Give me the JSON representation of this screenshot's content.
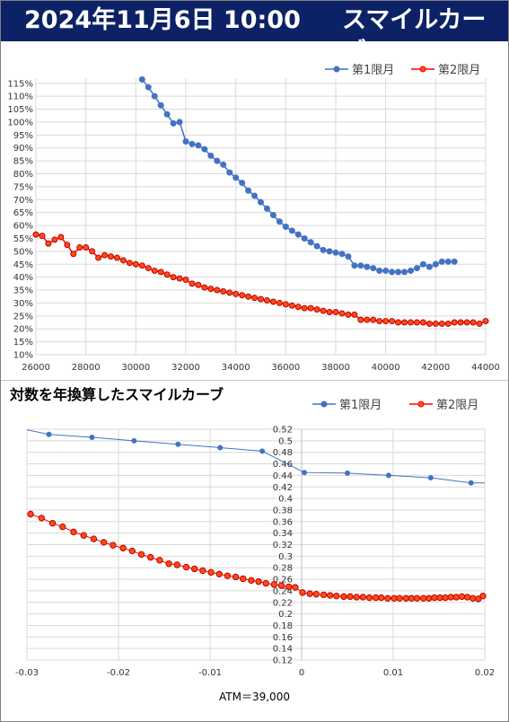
{
  "header": {
    "date": "2024年11月6日 10:00",
    "subject": "スマイルカーブ"
  },
  "colors": {
    "banner": "#0d2266",
    "series1": "#4472c4",
    "series2": "#ff0000",
    "series2_marker": "#ff4a17"
  },
  "chart2_title": "対数を年換算したスマイルカーブ",
  "footer": {
    "atm": "ATM＝39,000"
  },
  "chart_data": [
    {
      "type": "line",
      "title": "",
      "xlabel": "",
      "ylabel": "",
      "xlim": [
        26000,
        44000
      ],
      "ylim": [
        10,
        117
      ],
      "x_ticks": [
        26000,
        28000,
        30000,
        32000,
        34000,
        36000,
        38000,
        40000,
        42000,
        44000
      ],
      "y_ticks": [
        10,
        15,
        20,
        25,
        30,
        35,
        40,
        45,
        50,
        55,
        60,
        65,
        70,
        75,
        80,
        85,
        90,
        95,
        100,
        105,
        110,
        115
      ],
      "x_tick_labels": [
        "26000",
        "28000",
        "30000",
        "32000",
        "34000",
        "36000",
        "38000",
        "40000",
        "42000",
        "44000"
      ],
      "y_tick_labels": [
        "10%",
        "15%",
        "20%",
        "25%",
        "30%",
        "35%",
        "40%",
        "45%",
        "50%",
        "55%",
        "60%",
        "65%",
        "70%",
        "75%",
        "80%",
        "85%",
        "90%",
        "95%",
        "100%",
        "105%",
        "110%",
        "115%"
      ],
      "y_unit": "%",
      "grid": true,
      "legend": "top-right",
      "series": [
        {
          "name": "第1限月",
          "x": [
            30250,
            30500,
            30750,
            31000,
            31250,
            31500,
            31750,
            32000,
            32250,
            32500,
            32750,
            33000,
            33250,
            33500,
            33750,
            34000,
            34250,
            34500,
            34750,
            35000,
            35250,
            35500,
            35750,
            36000,
            36250,
            36500,
            36750,
            37000,
            37250,
            37500,
            37750,
            38000,
            38250,
            38500,
            38750,
            39000,
            39250,
            39500,
            39750,
            40000,
            40250,
            40500,
            40750,
            41000,
            41250,
            41500,
            41750,
            42000,
            42250,
            42500,
            42750
          ],
          "y": [
            116.5,
            113.5,
            110,
            106.5,
            103,
            99.5,
            100,
            92.5,
            91.5,
            91,
            89.5,
            87,
            85,
            83.5,
            80.5,
            78.5,
            76.5,
            73.5,
            71.5,
            69,
            66.5,
            64,
            61.5,
            59.5,
            58,
            56.5,
            55,
            53.5,
            52,
            50.5,
            50,
            49.5,
            49,
            48,
            44.5,
            44.5,
            44,
            43.5,
            42.5,
            42.5,
            42,
            42,
            42,
            42.5,
            43.5,
            45,
            44,
            45,
            46,
            46,
            46
          ]
        },
        {
          "name": "第2限月",
          "x": [
            26000,
            26250,
            26500,
            26750,
            27000,
            27250,
            27500,
            27750,
            28000,
            28250,
            28500,
            28750,
            29000,
            29250,
            29500,
            29750,
            30000,
            30250,
            30500,
            30750,
            31000,
            31250,
            31500,
            31750,
            32000,
            32250,
            32500,
            32750,
            33000,
            33250,
            33500,
            33750,
            34000,
            34250,
            34500,
            34750,
            35000,
            35250,
            35500,
            35750,
            36000,
            36250,
            36500,
            36750,
            37000,
            37250,
            37500,
            37750,
            38000,
            38250,
            38500,
            38750,
            39000,
            39250,
            39500,
            39750,
            40000,
            40250,
            40500,
            40750,
            41000,
            41250,
            41500,
            41750,
            42000,
            42250,
            42500,
            42750,
            43000,
            43250,
            43500,
            43750,
            44000
          ],
          "y": [
            56.5,
            56,
            53,
            54.5,
            55.5,
            52.5,
            49,
            51.5,
            51.5,
            50,
            47.5,
            48.5,
            48,
            47.5,
            46.5,
            45.5,
            45,
            44.5,
            43.5,
            42.5,
            42,
            41,
            40,
            39.5,
            39,
            37.5,
            37,
            36,
            35.5,
            35,
            34.5,
            34,
            33.5,
            33,
            32.5,
            32,
            31.5,
            31,
            30.5,
            30,
            29.5,
            29,
            28.5,
            28,
            28,
            27.5,
            27,
            26.5,
            26.5,
            26,
            25.5,
            25.5,
            23.5,
            23.5,
            23.5,
            23,
            23,
            23,
            22.5,
            22.5,
            22.5,
            22.5,
            22.5,
            22,
            22,
            22,
            22,
            22.5,
            22.5,
            22.5,
            22.5,
            22,
            23
          ]
        }
      ]
    },
    {
      "type": "line",
      "title": "",
      "xlabel": "",
      "ylabel": "",
      "xlim": [
        -0.03,
        0.02
      ],
      "ylim": [
        0.12,
        0.52
      ],
      "x_ticks": [
        -0.03,
        -0.02,
        -0.01,
        0,
        0.01,
        0.02
      ],
      "y_ticks": [
        0.12,
        0.14,
        0.16,
        0.18,
        0.2,
        0.22,
        0.24,
        0.26,
        0.28,
        0.3,
        0.32,
        0.34,
        0.36,
        0.38,
        0.4,
        0.42,
        0.44,
        0.46,
        0.48,
        0.5,
        0.52
      ],
      "x_tick_labels": [
        "-0.03",
        "-0.02",
        "-0.01",
        "0",
        "0.01",
        "0.02"
      ],
      "y_tick_labels": [
        "0.12",
        "0.14",
        "0.16",
        "0.18",
        "0.2",
        "0.22",
        "0.24",
        "0.26",
        "0.28",
        "0.3",
        "0.32",
        "0.34",
        "0.36",
        "0.38",
        "0.4",
        "0.42",
        "0.44",
        "0.46",
        "0.48",
        "0.5",
        "0.52"
      ],
      "grid": true,
      "legend": "top-right",
      "series": [
        {
          "name": "第1限月",
          "marker_every": true,
          "x": [
            -0.03,
            -0.0276,
            -0.0229,
            -0.0183,
            -0.0135,
            -0.0089,
            -0.0043,
            0.0003,
            0.005,
            0.0095,
            0.0141,
            0.0185,
            0.02
          ],
          "y": [
            0.519,
            0.511,
            0.506,
            0.5,
            0.494,
            0.488,
            0.482,
            0.445,
            0.444,
            0.44,
            0.436,
            0.427,
            0.427
          ],
          "markers_at": [
            1,
            2,
            3,
            4,
            5,
            6,
            7,
            8,
            9,
            10,
            11
          ]
        },
        {
          "name": "第2限月",
          "x": [
            -0.0296,
            -0.0284,
            -0.0272,
            -0.0261,
            -0.0249,
            -0.0238,
            -0.0227,
            -0.0216,
            -0.0206,
            -0.0195,
            -0.0185,
            -0.0175,
            -0.0165,
            -0.0155,
            -0.0145,
            -0.0136,
            -0.0126,
            -0.0117,
            -0.0108,
            -0.0099,
            -0.009,
            -0.0081,
            -0.0072,
            -0.0064,
            -0.0055,
            -0.0047,
            -0.0039,
            -0.003,
            -0.0022,
            -0.0014,
            -0.0007,
            0.0001,
            0.0009,
            0.0016,
            0.0024,
            0.0031,
            0.0038,
            0.0046,
            0.0053,
            0.006,
            0.0067,
            0.0074,
            0.0081,
            0.0087,
            0.0094,
            0.0101,
            0.0107,
            0.0114,
            0.012,
            0.0126,
            0.0133,
            0.0139,
            0.0145,
            0.0151,
            0.0157,
            0.0163,
            0.0169,
            0.0175,
            0.0181,
            0.0187,
            0.0193,
            0.0198
          ],
          "y": [
            0.373,
            0.366,
            0.357,
            0.351,
            0.342,
            0.336,
            0.33,
            0.324,
            0.319,
            0.314,
            0.309,
            0.303,
            0.298,
            0.293,
            0.287,
            0.285,
            0.281,
            0.278,
            0.275,
            0.272,
            0.269,
            0.266,
            0.264,
            0.261,
            0.258,
            0.256,
            0.253,
            0.251,
            0.249,
            0.247,
            0.246,
            0.237,
            0.235,
            0.234,
            0.233,
            0.232,
            0.231,
            0.23,
            0.23,
            0.229,
            0.229,
            0.228,
            0.228,
            0.228,
            0.227,
            0.227,
            0.227,
            0.227,
            0.227,
            0.227,
            0.227,
            0.227,
            0.228,
            0.228,
            0.228,
            0.229,
            0.229,
            0.23,
            0.229,
            0.227,
            0.226,
            0.231
          ]
        }
      ]
    }
  ]
}
